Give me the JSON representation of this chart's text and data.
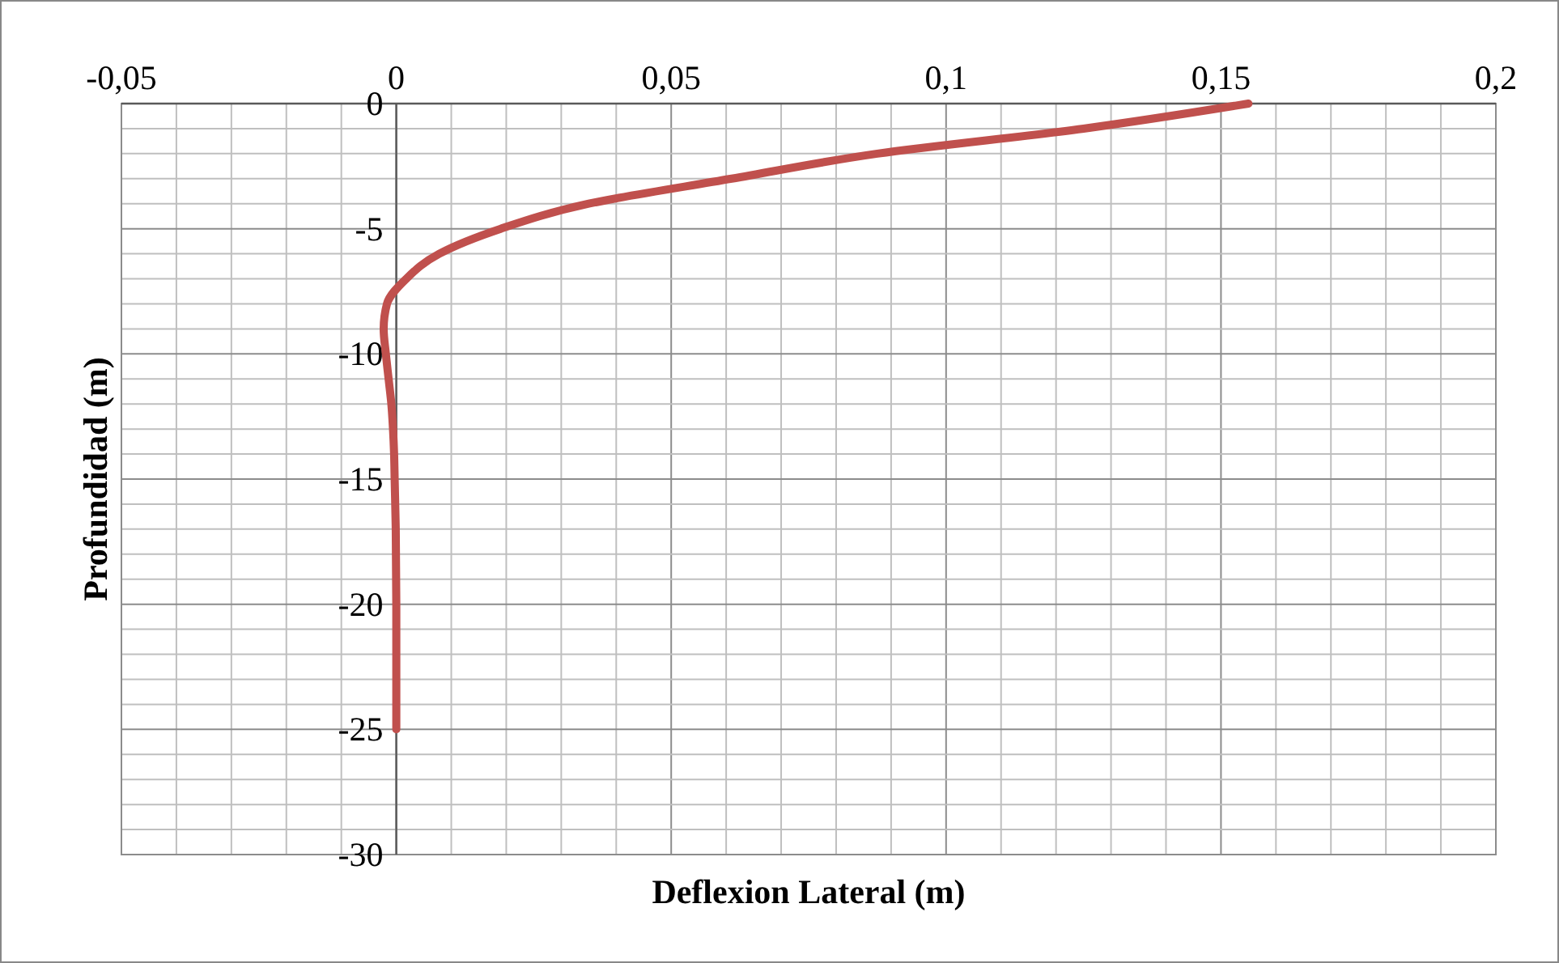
{
  "chart_data": {
    "type": "line",
    "xlabel": "Deflexion Lateral (m)",
    "ylabel": "Profundidad (m)",
    "xlim": [
      -0.05,
      0.2
    ],
    "ylim": [
      -30,
      0
    ],
    "xticks": [
      {
        "value": -0.05,
        "label": "-0,05"
      },
      {
        "value": -0.04,
        "label": null
      },
      {
        "value": -0.03,
        "label": null
      },
      {
        "value": -0.02,
        "label": null
      },
      {
        "value": -0.01,
        "label": null
      },
      0,
      {
        "value": 0.01,
        "label": null
      },
      {
        "value": 0.02,
        "label": null
      },
      {
        "value": 0.03,
        "label": null
      },
      {
        "value": 0.04,
        "label": null
      },
      {
        "value": 0.05,
        "label": "0,05"
      },
      {
        "value": 0.06,
        "label": null
      },
      {
        "value": 0.07,
        "label": null
      },
      {
        "value": 0.08,
        "label": null
      },
      {
        "value": 0.09,
        "label": null
      },
      {
        "value": 0.1,
        "label": "0,1"
      },
      {
        "value": 0.11,
        "label": null
      },
      {
        "value": 0.12,
        "label": null
      },
      {
        "value": 0.13,
        "label": null
      },
      {
        "value": 0.14,
        "label": null
      },
      {
        "value": 0.15,
        "label": "0,15"
      },
      {
        "value": 0.16,
        "label": null
      },
      {
        "value": 0.17,
        "label": null
      },
      {
        "value": 0.18,
        "label": null
      },
      {
        "value": 0.19,
        "label": null
      },
      {
        "value": 0.2,
        "label": "0,2"
      }
    ],
    "yticks": [
      0,
      {
        "value": -1,
        "label": null
      },
      {
        "value": -2,
        "label": null
      },
      {
        "value": -3,
        "label": null
      },
      {
        "value": -4,
        "label": null
      },
      -5,
      {
        "value": -6,
        "label": null
      },
      {
        "value": -7,
        "label": null
      },
      {
        "value": -8,
        "label": null
      },
      {
        "value": -9,
        "label": null
      },
      -10,
      {
        "value": -11,
        "label": null
      },
      {
        "value": -12,
        "label": null
      },
      {
        "value": -13,
        "label": null
      },
      {
        "value": -14,
        "label": null
      },
      -15,
      {
        "value": -16,
        "label": null
      },
      {
        "value": -17,
        "label": null
      },
      {
        "value": -18,
        "label": null
      },
      {
        "value": -19,
        "label": null
      },
      -20,
      {
        "value": -21,
        "label": null
      },
      {
        "value": -22,
        "label": null
      },
      {
        "value": -23,
        "label": null
      },
      {
        "value": -24,
        "label": null
      },
      -25,
      {
        "value": -26,
        "label": null
      },
      {
        "value": -27,
        "label": null
      },
      {
        "value": -28,
        "label": null
      },
      {
        "value": -29,
        "label": null
      },
      -30
    ],
    "grid": true,
    "marker": "none",
    "line_style": "solid",
    "series": [
      {
        "color": "#c0504d",
        "x": [
          0.155,
          0.125,
          0.0875,
          0.061,
          0.035,
          0.019,
          0.0078,
          0.0018,
          -0.0017,
          -0.0023,
          -0.0019,
          -0.0014,
          -0.0009,
          -0.0006,
          -0.0004,
          -0.0003,
          -0.0001,
          0,
          0
        ],
        "values": [
          0,
          -1,
          -2,
          -3,
          -4,
          -5,
          -6,
          -7,
          -8,
          -9,
          -10,
          -11,
          -12,
          -13,
          -14,
          -15,
          -17,
          -20,
          -25
        ]
      }
    ]
  }
}
